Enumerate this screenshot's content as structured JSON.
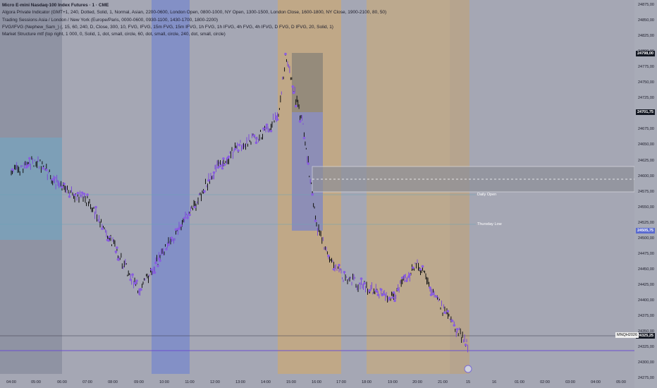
{
  "legend": {
    "title": "Micro E-mini Nasdaq-100 Index Futures · 1 · CME",
    "indicators": [
      "Algora Private Indicator (GMT+1, 240, Dotted, Solid, 1, Normal, Asian, 2200-0600, London Open, 0800-1000, NY Open, 1300-1500, London Close, 1600-1800, NY Close, 1900-2100, 80, 50)",
      "Trading Sessions Asia / London / New York (Europe/Paris, 0000-0600, 0930-1100, 1430-1700, 1800-2200)",
      "FVG/IFVG (Nephew_Sam_) (, 15, 60, 240, D, Close, 300, 10, FVG, IFVG, 15m FVG, 15m IFVG, 1h FVG, 1h IFVG, 4h FVG, 4h IFVG, D FVG, D IFVG, 20, Solid, 1)",
      "Market Structure mtf (top right, 1 000, 0, Solid, 1, dot, small, circle, 60, dot, small, circle, 240, dot, small, circle)"
    ]
  },
  "y_axis": {
    "labels": [
      "24875,00",
      "24850,00",
      "24825,00",
      "24800,00",
      "24775,00",
      "24750,00",
      "24725,00",
      "24700,00",
      "24675,00",
      "24650,00",
      "24625,00",
      "24600,00",
      "24575,00",
      "24550,00",
      "24525,00",
      "24500,00",
      "24475,00",
      "24450,00",
      "24425,00",
      "24400,00",
      "24375,00",
      "24350,00",
      "24325,00",
      "24300,00",
      "24275,00"
    ],
    "badges": [
      {
        "text": "24798,00",
        "bg": "#131722",
        "fg": "#ffffff"
      },
      {
        "text": "24701,75",
        "bg": "#131722",
        "fg": "#ffffff"
      },
      {
        "text": "24505,75",
        "bg": "#5b6bd0",
        "fg": "#ffffff"
      },
      {
        "text": "24325,25",
        "bg": "#131722",
        "fg": "#ffffff"
      }
    ]
  },
  "x_axis": {
    "labels": [
      "04:00",
      "05:00",
      "06:00",
      "07:00",
      "08:00",
      "09:00",
      "10:00",
      "11:00",
      "12:00",
      "13:00",
      "14:00",
      "15:00",
      "16:00",
      "17:00",
      "18:00",
      "19:00",
      "20:00",
      "21:00",
      "15",
      "16",
      "01:00",
      "02:00",
      "03:00",
      "04:00",
      "05:00"
    ]
  },
  "symbol_tag": "MNQH2026",
  "levels": {
    "daily_open": "Daily Open",
    "thursday_low": "Thursday Low"
  },
  "colors": {
    "background": "#a5a7b4",
    "asia_session": "#8f93a3",
    "london_session": "#8390c6",
    "ny_session": "#c0a887",
    "candle_up": "#7a4ad8",
    "candle_down": "#111111",
    "market_structure_dots": "#8a5de0"
  },
  "chart_data": {
    "type": "candlestick",
    "instrument": "MNQH2026",
    "ylim": [
      24275,
      24885
    ],
    "series": [
      {
        "name": "",
        "x": [
          "04:00",
          "05:00",
          "06:00",
          "07:00",
          "08:00",
          "09:00",
          "10:00",
          "11:00",
          "12:00",
          "13:00",
          "14:00",
          "14:30",
          "15:00",
          "15:30",
          "16:00",
          "16:30",
          "17:00",
          "18:00",
          "19:00",
          "20:00",
          "21:00",
          "21:45"
        ],
        "values": [
          24605,
          24625,
          24580,
          24560,
          24490,
          24415,
          24480,
          24540,
          24610,
          24650,
          24670,
          24700,
          24790,
          24680,
          24520,
          24470,
          24440,
          24420,
          24405,
          24460,
          24385,
          24325
        ]
      }
    ],
    "levels": [
      {
        "label": "Daily Open",
        "value": 24570
      },
      {
        "label": "Thursday Low",
        "value": 24518
      },
      {
        "label": "",
        "value": 24310
      }
    ]
  }
}
